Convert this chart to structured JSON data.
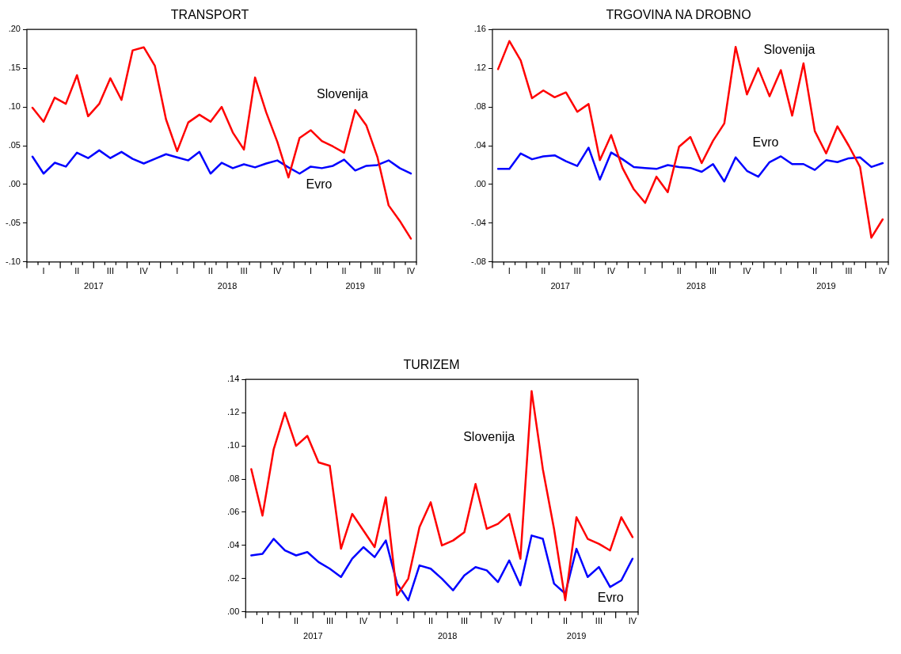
{
  "chart_data": [
    {
      "type": "line",
      "title": "TRANSPORT",
      "categories": [
        null,
        "I",
        null,
        null,
        "II",
        null,
        null,
        "III",
        null,
        null,
        "IV",
        null,
        null,
        "I",
        null,
        null,
        "II",
        null,
        null,
        "III",
        null,
        null,
        "IV",
        null,
        null,
        "I",
        null,
        null,
        "II",
        null,
        null,
        "III",
        null,
        null,
        "IV"
      ],
      "series": [
        {
          "name": "Slovenija",
          "color": "#ff0000",
          "values": [
            0.099,
            0.081,
            0.112,
            0.104,
            0.141,
            0.088,
            0.104,
            0.137,
            0.109,
            0.173,
            0.177,
            0.153,
            0.084,
            0.043,
            0.08,
            0.09,
            0.081,
            0.1,
            0.067,
            0.045,
            0.138,
            0.093,
            0.055,
            0.009,
            0.06,
            0.07,
            0.056,
            0.049,
            0.041,
            0.096,
            0.076,
            0.035,
            -0.027,
            -0.047,
            -0.07
          ]
        },
        {
          "name": "Evro",
          "color": "#0000ff",
          "values": [
            0.036,
            0.014,
            0.028,
            0.023,
            0.041,
            0.034,
            0.044,
            0.034,
            0.042,
            0.033,
            0.027,
            0.033,
            0.039,
            0.035,
            0.031,
            0.042,
            0.014,
            0.028,
            0.021,
            0.026,
            0.022,
            0.027,
            0.031,
            0.022,
            0.014,
            0.023,
            0.021,
            0.024,
            0.032,
            0.018,
            0.024,
            0.025,
            0.031,
            0.021,
            0.014
          ]
        }
      ],
      "ylim": [
        -0.1,
        0.2
      ],
      "yticks": [
        {
          "value": -0.1,
          "label": "-.10"
        },
        {
          "value": -0.05,
          "label": "-.05"
        },
        {
          "value": 0,
          "label": ".00"
        },
        {
          "value": 0.05,
          "label": ".05"
        },
        {
          "value": 0.1,
          "label": ".10"
        },
        {
          "value": 0.15,
          "label": ".15"
        },
        {
          "value": 0.2,
          "label": ".20"
        }
      ],
      "annotations": [
        "2017",
        "2018",
        "2019"
      ],
      "grid": false,
      "legend": false,
      "line_style": "solid",
      "marker": "none"
    },
    {
      "type": "line",
      "title": "TRGOVINA NA DROBNO",
      "categories": [
        null,
        "I",
        null,
        null,
        "II",
        null,
        null,
        "III",
        null,
        null,
        "IV",
        null,
        null,
        "I",
        null,
        null,
        "II",
        null,
        null,
        "III",
        null,
        null,
        "IV",
        null,
        null,
        "I",
        null,
        null,
        "II",
        null,
        null,
        "III",
        null,
        null,
        "IV"
      ],
      "series": [
        {
          "name": "Slovenija",
          "color": "#ff0000",
          "values": [
            0.119,
            0.148,
            0.128,
            0.089,
            0.097,
            0.09,
            0.095,
            0.075,
            0.083,
            0.025,
            0.051,
            0.017,
            -0.005,
            -0.019,
            0.008,
            -0.008,
            0.039,
            0.049,
            0.022,
            0.045,
            0.063,
            0.142,
            0.093,
            0.12,
            0.091,
            0.118,
            0.071,
            0.125,
            0.055,
            0.032,
            0.06,
            0.04,
            0.018,
            -0.055,
            -0.036
          ]
        },
        {
          "name": "Evro",
          "color": "#0000ff",
          "values": [
            0.016,
            0.016,
            0.032,
            0.026,
            0.029,
            0.03,
            0.024,
            0.019,
            0.038,
            0.005,
            0.033,
            0.026,
            0.018,
            0.017,
            0.016,
            0.02,
            0.018,
            0.017,
            0.013,
            0.021,
            0.003,
            0.028,
            0.014,
            0.008,
            0.023,
            0.029,
            0.021,
            0.021,
            0.015,
            0.025,
            0.023,
            0.027,
            0.028,
            0.018,
            0.022
          ]
        }
      ],
      "ylim": [
        -0.08,
        0.16
      ],
      "yticks": [
        {
          "value": -0.08,
          "label": "-.08"
        },
        {
          "value": -0.04,
          "label": "-.04"
        },
        {
          "value": 0,
          "label": ".00"
        },
        {
          "value": 0.04,
          "label": ".04"
        },
        {
          "value": 0.08,
          "label": ".08"
        },
        {
          "value": 0.12,
          "label": ".12"
        },
        {
          "value": 0.16,
          "label": ".16"
        }
      ],
      "annotations": [
        "2017",
        "2018",
        "2019"
      ],
      "grid": false,
      "legend": false,
      "line_style": "solid",
      "marker": "none"
    },
    {
      "type": "line",
      "title": "TURIZEM",
      "categories": [
        null,
        "I",
        null,
        null,
        "II",
        null,
        null,
        "III",
        null,
        null,
        "IV",
        null,
        null,
        "I",
        null,
        null,
        "II",
        null,
        null,
        "III",
        null,
        null,
        "IV",
        null,
        null,
        "I",
        null,
        null,
        "II",
        null,
        null,
        "III",
        null,
        null,
        "IV"
      ],
      "series": [
        {
          "name": "Slovenija",
          "color": "#ff0000",
          "values": [
            0.086,
            0.058,
            0.098,
            0.12,
            0.1,
            0.106,
            0.09,
            0.088,
            0.038,
            0.059,
            0.049,
            0.039,
            0.069,
            0.01,
            0.02,
            0.051,
            0.066,
            0.04,
            0.043,
            0.048,
            0.077,
            0.05,
            0.053,
            0.059,
            0.032,
            0.133,
            0.086,
            0.05,
            0.007,
            0.057,
            0.044,
            0.041,
            0.037,
            0.057,
            0.045
          ]
        },
        {
          "name": "Evro",
          "color": "#0000ff",
          "values": [
            0.034,
            0.035,
            0.044,
            0.037,
            0.034,
            0.036,
            0.03,
            0.026,
            0.021,
            0.032,
            0.039,
            0.033,
            0.043,
            0.017,
            0.007,
            0.028,
            0.026,
            0.02,
            0.013,
            0.022,
            0.027,
            0.025,
            0.018,
            0.031,
            0.016,
            0.046,
            0.044,
            0.017,
            0.011,
            0.038,
            0.021,
            0.027,
            0.015,
            0.019,
            0.032
          ]
        }
      ],
      "ylim": [
        0,
        0.14
      ],
      "yticks": [
        {
          "value": 0,
          "label": ".00"
        },
        {
          "value": 0.02,
          "label": ".02"
        },
        {
          "value": 0.04,
          "label": ".04"
        },
        {
          "value": 0.06,
          "label": ".06"
        },
        {
          "value": 0.08,
          "label": ".08"
        },
        {
          "value": 0.1,
          "label": ".10"
        },
        {
          "value": 0.12,
          "label": ".12"
        },
        {
          "value": 0.14,
          "label": ".14"
        }
      ],
      "annotations": [
        "2017",
        "2018",
        "2019"
      ],
      "grid": false,
      "legend": false,
      "line_style": "solid",
      "marker": "none"
    }
  ]
}
